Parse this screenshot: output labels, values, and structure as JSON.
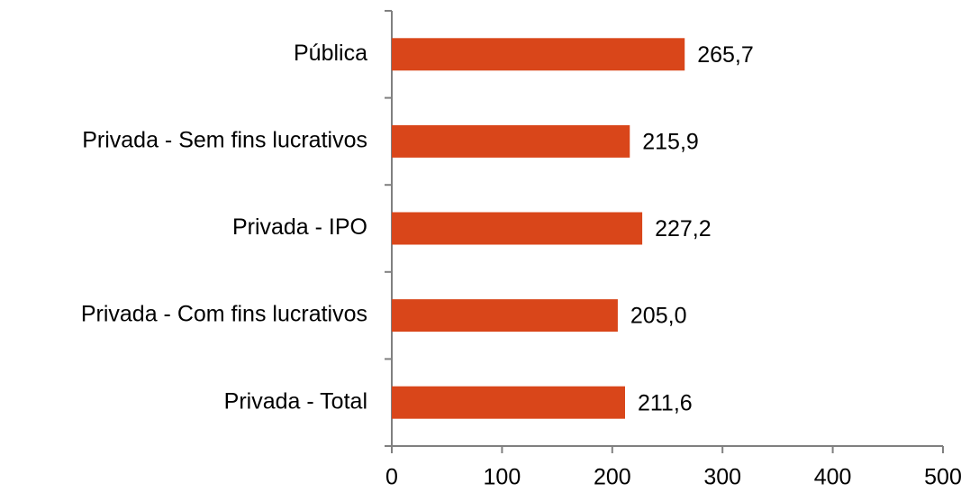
{
  "chart_data": {
    "type": "bar",
    "orientation": "horizontal",
    "categories": [
      "Pública",
      "Privada - Sem fins lucrativos",
      "Privada - IPO",
      "Privada - Com fins lucrativos",
      "Privada - Total"
    ],
    "values": [
      265.7,
      215.9,
      227.2,
      205.0,
      211.6
    ],
    "value_labels": [
      "265,7",
      "215,9",
      "227,2",
      "205,0",
      "211,6"
    ],
    "color": "#d9461a",
    "xlim": [
      0,
      500
    ],
    "xticks": [
      0,
      100,
      200,
      300,
      400,
      500
    ],
    "grid": false
  }
}
